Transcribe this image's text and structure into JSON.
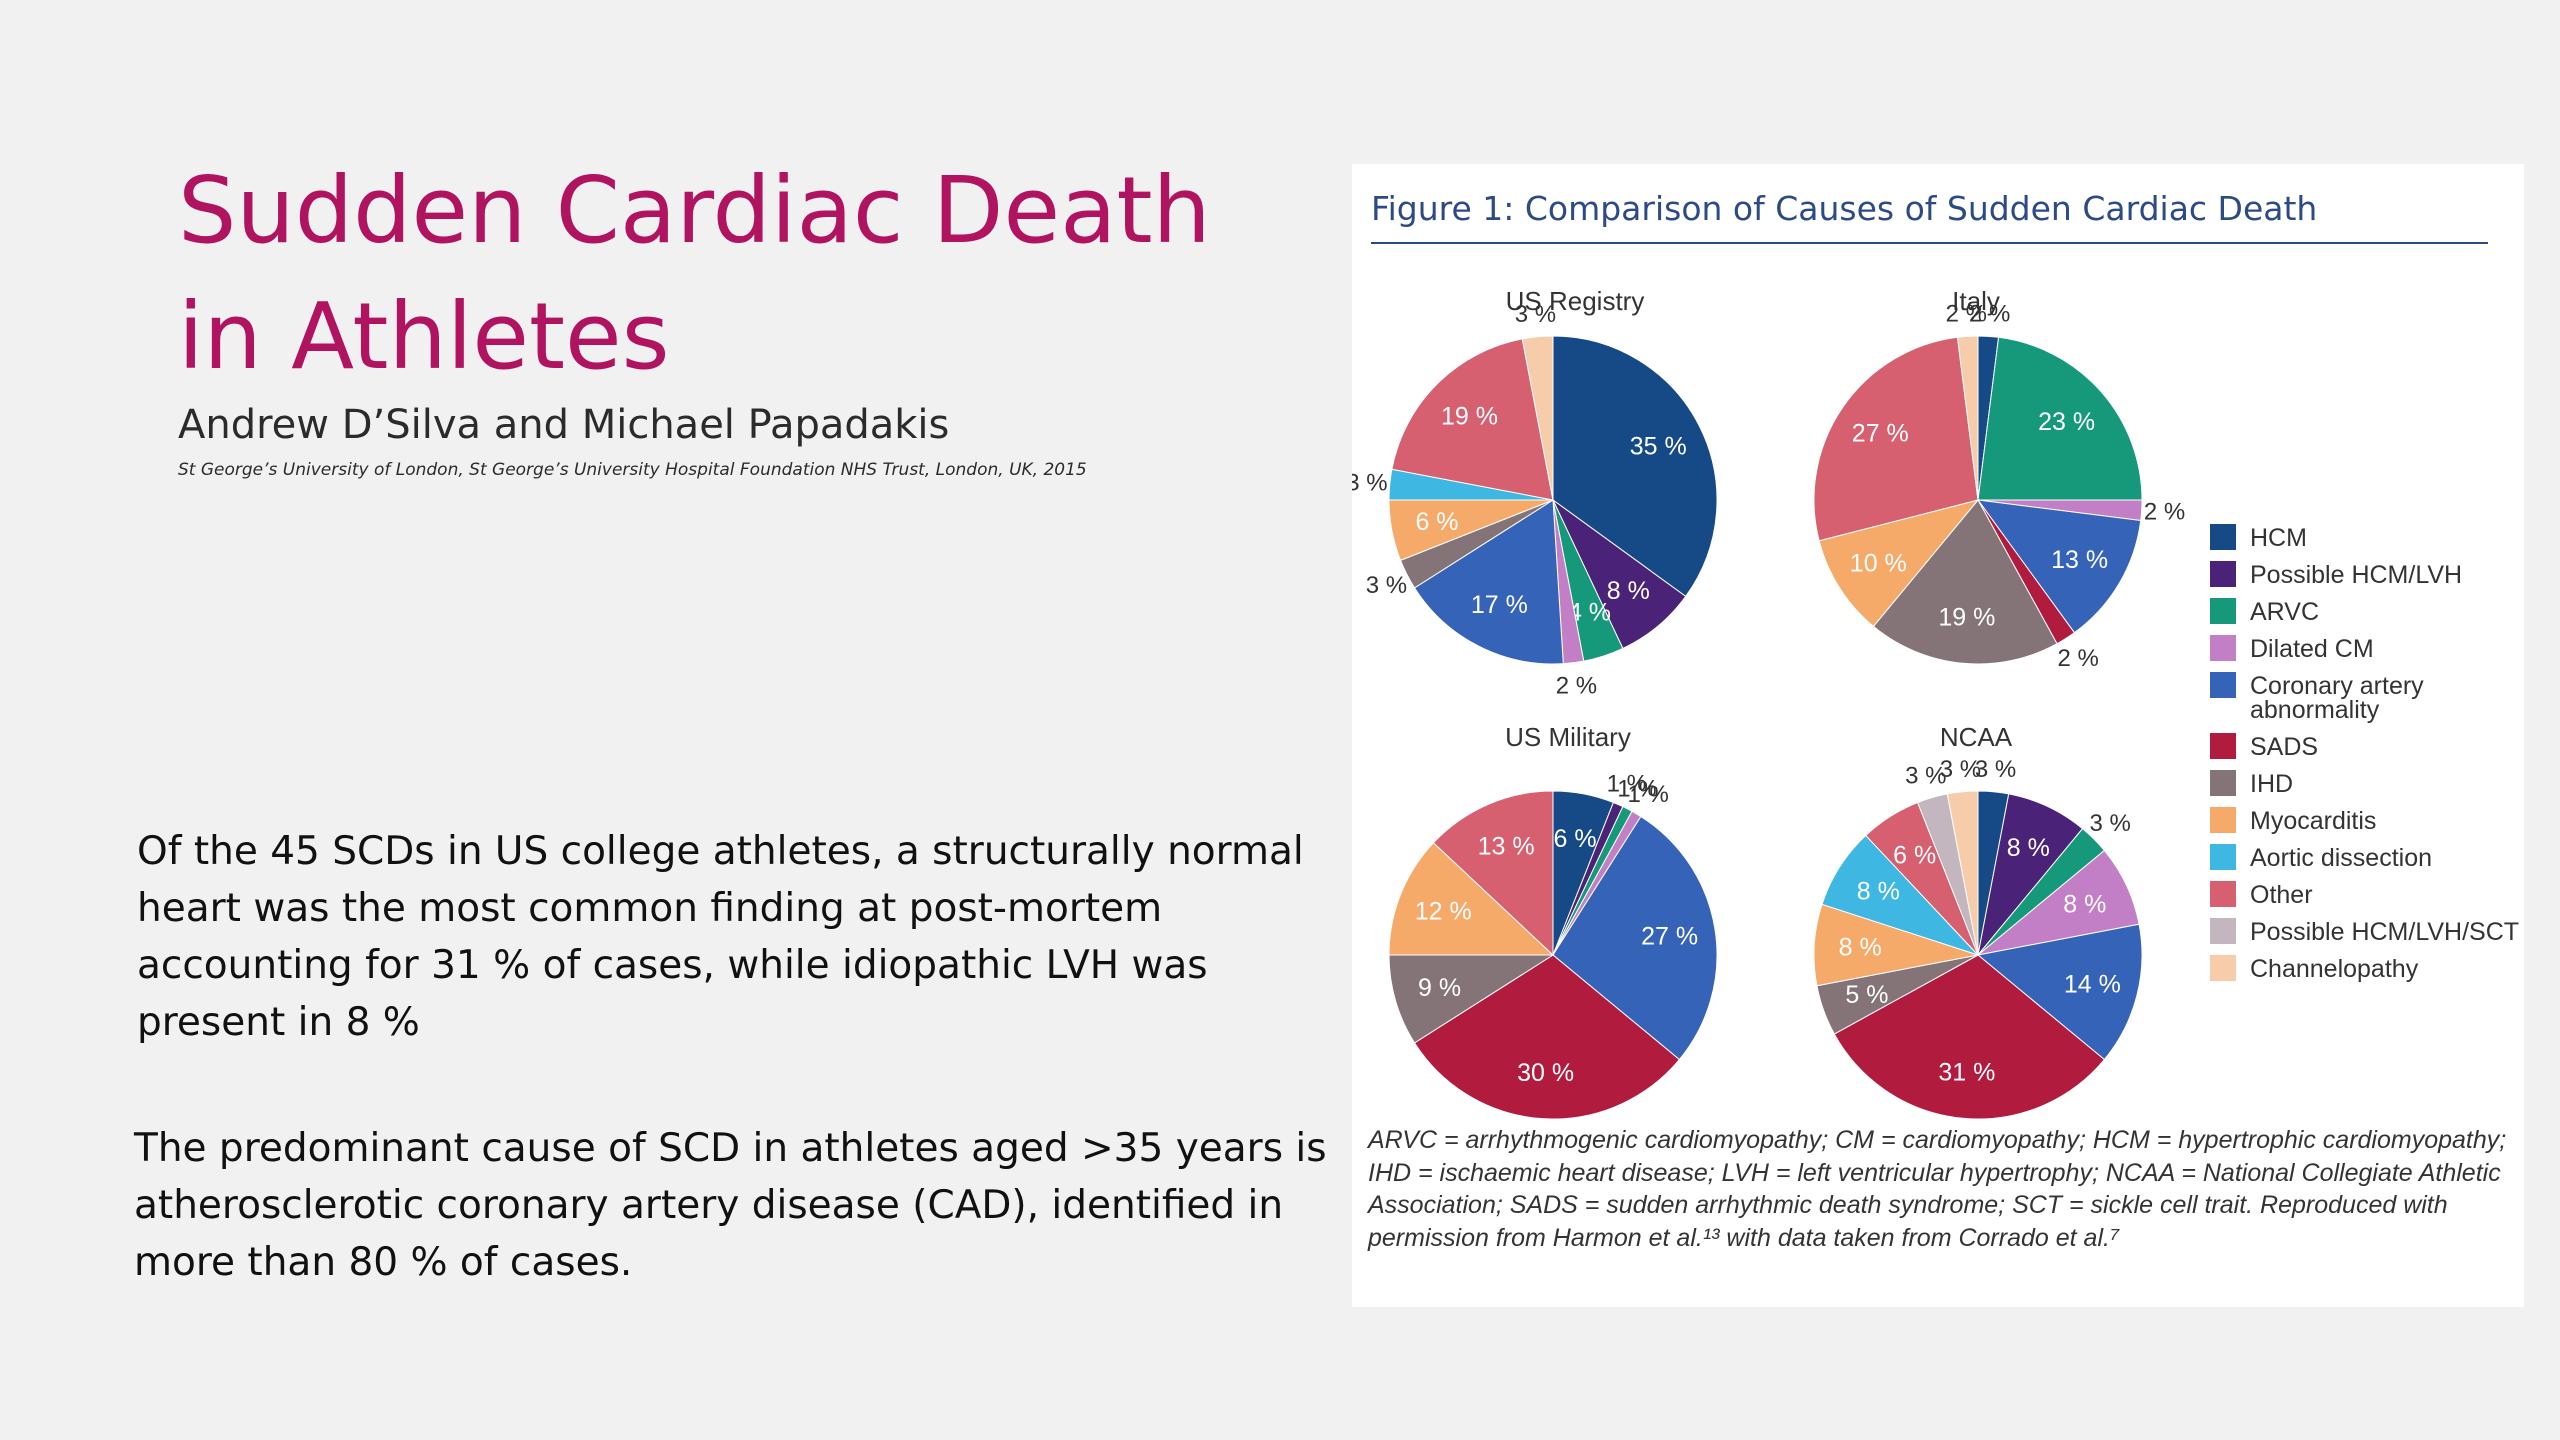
{
  "slide": {
    "title": "Sudden Cardiac Death in Athletes",
    "authors": "Andrew D’Silva and Michael Papadakis",
    "affiliation": "St George’s University of London, St George’s University Hospital Foundation NHS Trust, London, UK, 2015",
    "paragraphs": [
      "Of the 45 SCDs in US college athletes, a structurally normal heart was the most common finding at post-mortem accounting for 31 % of cases, while idiopathic LVH was present in 8 %",
      "The predominant cause of SCD in athletes aged >35 years is atherosclerotic coronary artery disease (CAD), identified in more than 80 % of cases."
    ]
  },
  "figure": {
    "title": "Figure 1: Comparison of Causes of Sudden Cardiac Death",
    "note": "ARVC = arrhythmogenic cardiomyopathy; CM = cardiomyopathy; HCM = hypertrophic cardiomyopathy; IHD = ischaemic heart disease; LVH = left ventricular hypertrophy; NCAA = National Collegiate Athletic Association; SADS = sudden arrhythmic death syndrome; SCT = sickle cell trait. Reproduced with permission from Harmon et al.¹³ with data taken from Corrado et al.⁷"
  },
  "chart_data": {
    "type": "pie",
    "legend_position": "right",
    "categories": [
      {
        "name": "HCM",
        "color": "#164a86"
      },
      {
        "name": "Possible HCM/LVH",
        "color": "#4a2378"
      },
      {
        "name": "ARVC",
        "color": "#16987a"
      },
      {
        "name": "Dilated CM",
        "color": "#c27fc5"
      },
      {
        "name": "Coronary artery abnormality",
        "color": "#3563b8"
      },
      {
        "name": "SADS",
        "color": "#b01b3e"
      },
      {
        "name": "IHD",
        "color": "#847478"
      },
      {
        "name": "Myocarditis",
        "color": "#f6aa6a"
      },
      {
        "name": "Aortic dissection",
        "color": "#3fb7e3"
      },
      {
        "name": "Other",
        "color": "#d65f70"
      },
      {
        "name": "Possible HCM/LVH/SCT",
        "color": "#c3b6bf"
      },
      {
        "name": "Channelopathy",
        "color": "#f7ccaa"
      }
    ],
    "charts": [
      {
        "title": "US Registry",
        "slices": [
          {
            "category": "HCM",
            "value": 35
          },
          {
            "category": "Possible HCM/LVH",
            "value": 8
          },
          {
            "category": "ARVC",
            "value": 4
          },
          {
            "category": "Dilated CM",
            "value": 2
          },
          {
            "category": "Coronary artery abnormality",
            "value": 17
          },
          {
            "category": "IHD",
            "value": 3
          },
          {
            "category": "Myocarditis",
            "value": 6
          },
          {
            "category": "Aortic dissection",
            "value": 3
          },
          {
            "category": "Other",
            "value": 19
          },
          {
            "category": "Channelopathy",
            "value": 3
          }
        ]
      },
      {
        "title": "Italy",
        "slices": [
          {
            "category": "HCM",
            "value": 2
          },
          {
            "category": "ARVC",
            "value": 23
          },
          {
            "category": "Dilated CM",
            "value": 2
          },
          {
            "category": "Coronary artery abnormality",
            "value": 13
          },
          {
            "category": "SADS",
            "value": 2
          },
          {
            "category": "IHD",
            "value": 19
          },
          {
            "category": "Myocarditis",
            "value": 10
          },
          {
            "category": "Other",
            "value": 27
          },
          {
            "category": "Channelopathy",
            "value": 2
          }
        ]
      },
      {
        "title": "US Military",
        "slices": [
          {
            "category": "HCM",
            "value": 6
          },
          {
            "category": "Possible HCM/LVH",
            "value": 1
          },
          {
            "category": "ARVC",
            "value": 1
          },
          {
            "category": "Dilated CM",
            "value": 1
          },
          {
            "category": "Coronary artery abnormality",
            "value": 27
          },
          {
            "category": "SADS",
            "value": 30
          },
          {
            "category": "IHD",
            "value": 9
          },
          {
            "category": "Myocarditis",
            "value": 12
          },
          {
            "category": "Other",
            "value": 13
          }
        ]
      },
      {
        "title": "NCAA",
        "slices": [
          {
            "category": "HCM",
            "value": 3
          },
          {
            "category": "Possible HCM/LVH",
            "value": 8
          },
          {
            "category": "ARVC",
            "value": 3
          },
          {
            "category": "Dilated CM",
            "value": 8
          },
          {
            "category": "Coronary artery abnormality",
            "value": 14
          },
          {
            "category": "SADS",
            "value": 31
          },
          {
            "category": "IHD",
            "value": 5
          },
          {
            "category": "Myocarditis",
            "value": 8
          },
          {
            "category": "Aortic dissection",
            "value": 8
          },
          {
            "category": "Other",
            "value": 6
          },
          {
            "category": "Possible HCM/LVH/SCT",
            "value": 3
          },
          {
            "category": "Channelopathy",
            "value": 3
          }
        ]
      }
    ]
  }
}
